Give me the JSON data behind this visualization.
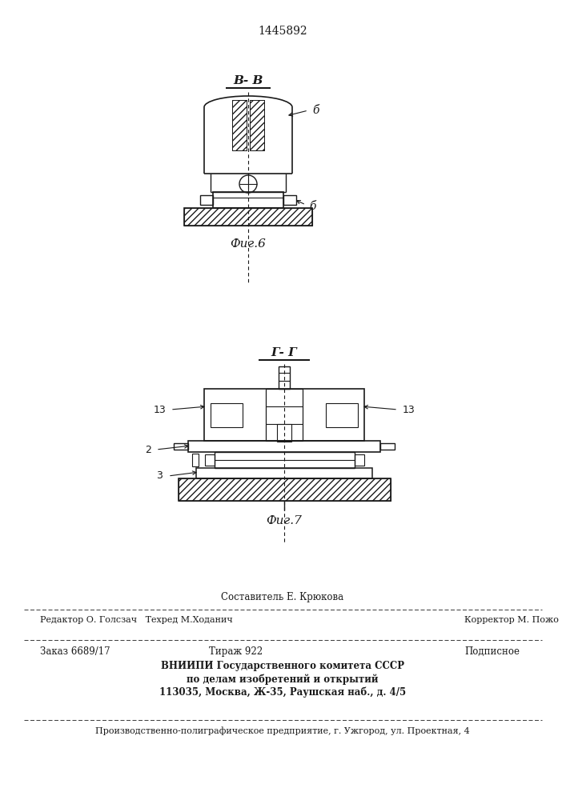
{
  "patent_number": "1445892",
  "fig6_label": "В- В",
  "fig6_caption": "Фиг.6",
  "fig7_label": "Г- Г",
  "fig7_caption": "Фиг.7",
  "label_b": "б",
  "label_13": "13",
  "label_2": "2",
  "label_3": "3",
  "line1_top": "Составитель Е. Крюкова",
  "line2_editor": "Редактор О. Голсзач   Техред М.Ходанич",
  "line2_corrector": "Корректор М. Пожо",
  "line3_order": "Заказ 6689/17",
  "line3_tirazh": "Тираж 922",
  "line3_podpisnoe": "Подписное",
  "line4_vniiipi": "ВНИИПИ Государственного комитета СССР",
  "line5_po": "по делам изобретений и открытий",
  "line6_address": "113035, Москва, Ж-35, Раушская наб., д. 4/5",
  "line7_production": "Производственно-полиграфическое предприятие, г. Ужгород, ул. Проектная, 4",
  "bg_color": "#ffffff",
  "line_color": "#1a1a1a"
}
